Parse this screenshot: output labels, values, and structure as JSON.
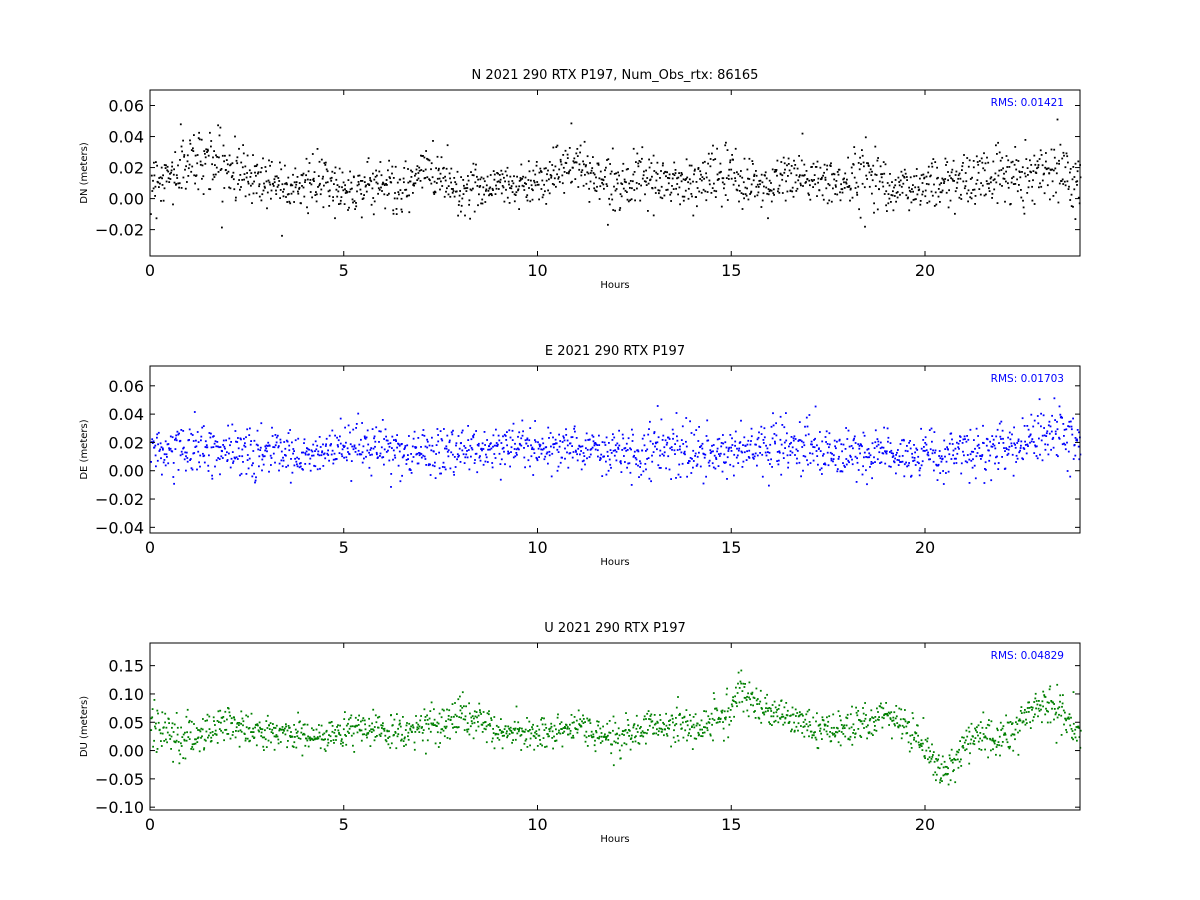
{
  "chart_data": [
    {
      "type": "scatter",
      "title": "N 2021 290 RTX  P197, Num_Obs_rtx: 86165",
      "xlabel": "Hours",
      "ylabel": "DN (meters)",
      "xlim": [
        0,
        24
      ],
      "ylim": [
        -0.037,
        0.07
      ],
      "xticks": [
        0,
        5,
        10,
        15,
        20
      ],
      "yticks": [
        -0.02,
        0.0,
        0.02,
        0.04,
        0.06
      ],
      "ytick_labels": [
        "−0.02",
        "0.00",
        "0.02",
        "0.04",
        "0.06"
      ],
      "annotation": "RMS:  0.01421",
      "color": "#000000",
      "series": [
        {
          "x": [
            0.0,
            0.5,
            1.0,
            1.5,
            2.0,
            2.5,
            3.0,
            3.5,
            4.0,
            4.5,
            5.0,
            5.5,
            6.0,
            6.5,
            7.0,
            7.5,
            8.0,
            8.5,
            9.0,
            9.5,
            10.0,
            10.5,
            11.0,
            11.5,
            12.0,
            12.5,
            13.0,
            13.5,
            14.0,
            14.5,
            15.0,
            15.5,
            16.0,
            16.5,
            17.0,
            17.5,
            18.0,
            18.5,
            19.0,
            19.5,
            20.0,
            20.5,
            21.0,
            21.5,
            22.0,
            22.5,
            23.0,
            23.5,
            24.0
          ],
          "y": [
            0.012,
            0.014,
            0.024,
            0.027,
            0.019,
            0.015,
            0.012,
            0.01,
            0.009,
            0.01,
            0.005,
            0.008,
            0.011,
            0.003,
            0.018,
            0.016,
            0.004,
            0.008,
            0.01,
            0.008,
            0.012,
            0.018,
            0.022,
            0.014,
            0.01,
            0.012,
            0.01,
            0.011,
            0.008,
            0.016,
            0.013,
            0.01,
            0.008,
            0.015,
            0.012,
            0.011,
            0.009,
            0.019,
            0.01,
            0.005,
            0.01,
            0.011,
            0.012,
            0.014,
            0.016,
            0.015,
            0.018,
            0.02,
            0.012
          ],
          "spread": [
            0.008,
            0.009,
            0.01,
            0.01,
            0.01,
            0.009,
            0.009,
            0.008,
            0.008,
            0.008,
            0.007,
            0.008,
            0.009,
            0.008,
            0.008,
            0.008,
            0.008,
            0.007,
            0.007,
            0.007,
            0.007,
            0.008,
            0.009,
            0.008,
            0.007,
            0.007,
            0.007,
            0.008,
            0.009,
            0.009,
            0.009,
            0.008,
            0.008,
            0.009,
            0.008,
            0.008,
            0.008,
            0.012,
            0.008,
            0.008,
            0.008,
            0.008,
            0.008,
            0.009,
            0.009,
            0.009,
            0.009,
            0.01,
            0.008
          ]
        }
      ]
    },
    {
      "type": "scatter",
      "title": "E 2021 290 RTX  P197",
      "xlabel": "Hours",
      "ylabel": "DE (meters)",
      "xlim": [
        0,
        24
      ],
      "ylim": [
        -0.044,
        0.074
      ],
      "xticks": [
        0,
        5,
        10,
        15,
        20
      ],
      "yticks": [
        -0.04,
        -0.02,
        0.0,
        0.02,
        0.04,
        0.06
      ],
      "ytick_labels": [
        "−0.04",
        "−0.02",
        "0.00",
        "0.02",
        "0.04",
        "0.06"
      ],
      "annotation": "RMS:  0.01703",
      "color": "#0000ff",
      "series": [
        {
          "x": [
            0.0,
            0.5,
            1.0,
            1.5,
            2.0,
            2.5,
            3.0,
            3.5,
            4.0,
            4.5,
            5.0,
            5.5,
            6.0,
            6.5,
            7.0,
            7.5,
            8.0,
            8.5,
            9.0,
            9.5,
            10.0,
            10.5,
            11.0,
            11.5,
            12.0,
            12.5,
            13.0,
            13.5,
            14.0,
            14.5,
            15.0,
            15.5,
            16.0,
            16.5,
            17.0,
            17.5,
            18.0,
            18.5,
            19.0,
            19.5,
            20.0,
            20.5,
            21.0,
            21.5,
            22.0,
            22.5,
            23.0,
            23.5,
            24.0
          ],
          "y": [
            0.015,
            0.014,
            0.016,
            0.013,
            0.014,
            0.012,
            0.014,
            0.013,
            0.012,
            0.014,
            0.015,
            0.016,
            0.015,
            0.014,
            0.013,
            0.012,
            0.014,
            0.015,
            0.016,
            0.017,
            0.016,
            0.016,
            0.015,
            0.014,
            0.013,
            0.015,
            0.012,
            0.015,
            0.014,
            0.012,
            0.013,
            0.015,
            0.016,
            0.018,
            0.017,
            0.015,
            0.012,
            0.01,
            0.012,
            0.011,
            0.01,
            0.011,
            0.014,
            0.012,
            0.018,
            0.022,
            0.024,
            0.023,
            0.019
          ],
          "spread": [
            0.008,
            0.008,
            0.009,
            0.008,
            0.008,
            0.008,
            0.008,
            0.008,
            0.008,
            0.008,
            0.008,
            0.009,
            0.009,
            0.008,
            0.008,
            0.009,
            0.01,
            0.008,
            0.008,
            0.008,
            0.008,
            0.008,
            0.008,
            0.008,
            0.008,
            0.009,
            0.012,
            0.01,
            0.009,
            0.009,
            0.008,
            0.008,
            0.009,
            0.011,
            0.011,
            0.009,
            0.009,
            0.009,
            0.008,
            0.008,
            0.008,
            0.008,
            0.01,
            0.01,
            0.009,
            0.009,
            0.01,
            0.01,
            0.009
          ]
        }
      ]
    },
    {
      "type": "scatter",
      "title": "U 2021 290 RTX  P197",
      "xlabel": "Hours",
      "ylabel": "DU (meters)",
      "xlim": [
        0,
        24
      ],
      "ylim": [
        -0.105,
        0.19
      ],
      "xticks": [
        0,
        5,
        10,
        15,
        20
      ],
      "yticks": [
        -0.1,
        -0.05,
        0.0,
        0.05,
        0.1,
        0.15
      ],
      "ytick_labels": [
        "−0.10",
        "−0.05",
        "0.00",
        "0.05",
        "0.10",
        "0.15"
      ],
      "annotation": "RMS:  0.04829",
      "color": "#008000",
      "series": [
        {
          "x": [
            0.0,
            0.5,
            1.0,
            1.5,
            2.0,
            2.5,
            3.0,
            3.5,
            4.0,
            4.5,
            5.0,
            5.5,
            6.0,
            6.5,
            7.0,
            7.5,
            8.0,
            8.5,
            9.0,
            9.5,
            10.0,
            10.5,
            11.0,
            11.5,
            12.0,
            12.5,
            13.0,
            13.5,
            14.0,
            14.5,
            15.0,
            15.25,
            15.5,
            16.0,
            16.5,
            17.0,
            17.5,
            18.0,
            18.5,
            19.0,
            19.5,
            20.0,
            20.25,
            20.5,
            20.75,
            21.0,
            21.5,
            22.0,
            22.5,
            23.0,
            23.5,
            24.0
          ],
          "y": [
            0.04,
            0.03,
            0.02,
            0.04,
            0.05,
            0.04,
            0.03,
            0.03,
            0.03,
            0.02,
            0.04,
            0.04,
            0.035,
            0.03,
            0.04,
            0.05,
            0.06,
            0.05,
            0.03,
            0.03,
            0.03,
            0.03,
            0.04,
            0.03,
            0.02,
            0.035,
            0.04,
            0.045,
            0.04,
            0.05,
            0.07,
            0.11,
            0.09,
            0.07,
            0.06,
            0.04,
            0.03,
            0.04,
            0.05,
            0.06,
            0.04,
            0.01,
            -0.02,
            -0.04,
            -0.03,
            0.02,
            0.03,
            0.02,
            0.05,
            0.08,
            0.07,
            0.03
          ],
          "spread": [
            0.018,
            0.018,
            0.02,
            0.016,
            0.016,
            0.015,
            0.014,
            0.014,
            0.014,
            0.014,
            0.014,
            0.014,
            0.014,
            0.014,
            0.016,
            0.017,
            0.018,
            0.015,
            0.014,
            0.014,
            0.014,
            0.014,
            0.015,
            0.016,
            0.016,
            0.016,
            0.016,
            0.016,
            0.016,
            0.016,
            0.018,
            0.02,
            0.018,
            0.016,
            0.016,
            0.016,
            0.016,
            0.016,
            0.016,
            0.016,
            0.017,
            0.018,
            0.02,
            0.02,
            0.018,
            0.018,
            0.018,
            0.016,
            0.016,
            0.016,
            0.018,
            0.02
          ]
        }
      ]
    }
  ]
}
